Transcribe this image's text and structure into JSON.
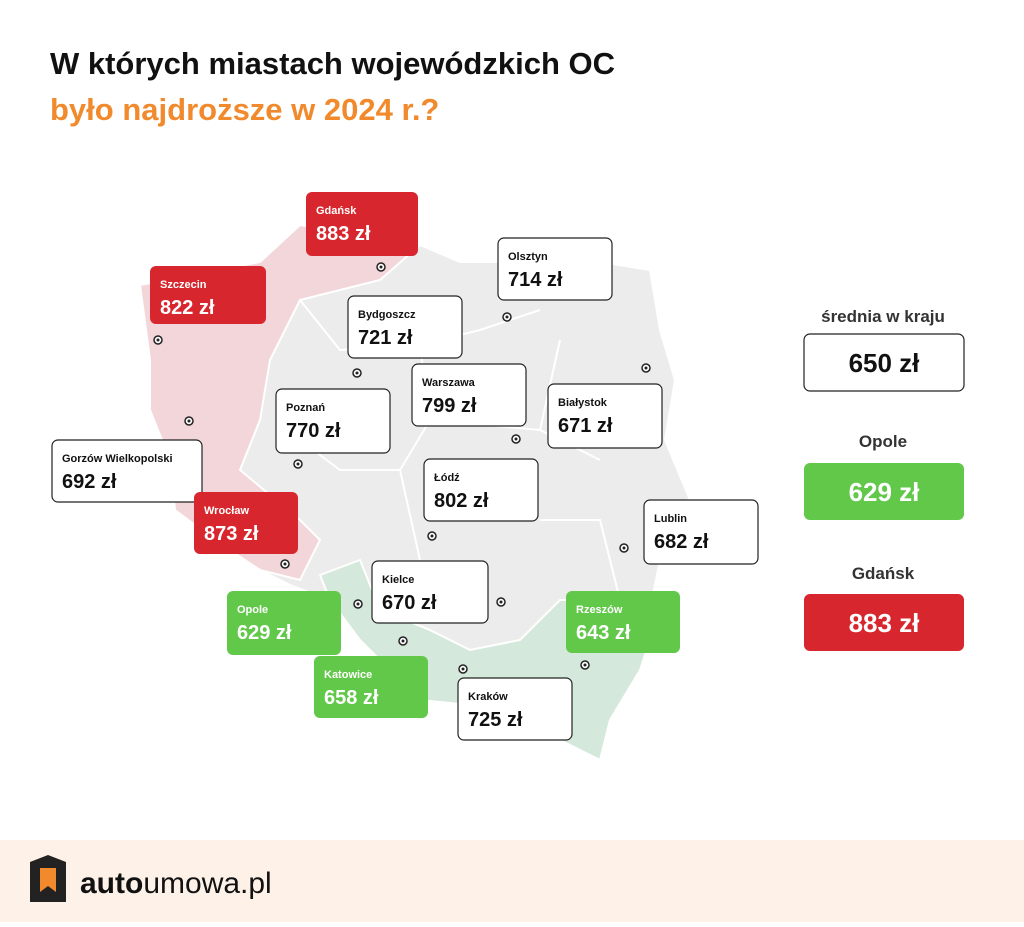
{
  "header": {
    "title_line1": "W których miastach wojewódzkich OC",
    "title_line2": "było najdroższe w 2024 r.?"
  },
  "cities": [
    {
      "name": "Gdańsk",
      "price": "883 zł"
    },
    {
      "name": "Szczecin",
      "price": "822 zł"
    },
    {
      "name": "Olsztyn",
      "price": "714 zł"
    },
    {
      "name": "Bydgoszcz",
      "price": "721 zł"
    },
    {
      "name": "Warszawa",
      "price": "799 zł"
    },
    {
      "name": "Białystok",
      "price": "671 zł"
    },
    {
      "name": "Poznań",
      "price": "770 zł"
    },
    {
      "name": "Gorzów Wielkopolski",
      "price": "692 zł"
    },
    {
      "name": "Łódź",
      "price": "802 zł"
    },
    {
      "name": "Wrocław",
      "price": "873 zł"
    },
    {
      "name": "Lublin",
      "price": "682 zł"
    },
    {
      "name": "Kielce",
      "price": "670 zł"
    },
    {
      "name": "Opole",
      "price": "629 zł"
    },
    {
      "name": "Rzeszów",
      "price": "643 zł"
    },
    {
      "name": "Katowice",
      "price": "658 zł"
    },
    {
      "name": "Kraków",
      "price": "725 zł"
    }
  ],
  "summary": [
    {
      "label": "średnia w kraju",
      "price": "650 zł"
    },
    {
      "label": "Opole",
      "price": "629 zł"
    },
    {
      "label": "Gdańsk",
      "price": "883 zł"
    }
  ],
  "footer": {
    "brand_bold": "auto",
    "brand_rest": "umowa.pl"
  }
}
